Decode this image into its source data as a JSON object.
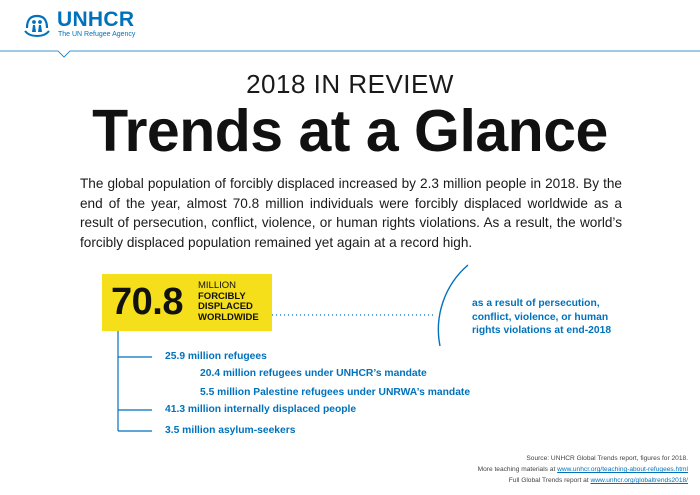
{
  "header": {
    "logo_name": "UNHCR",
    "logo_tagline": "The UN Refugee Agency",
    "logo_icon": "unhcr-emblem-icon"
  },
  "kicker": "2018 IN REVIEW",
  "title": "Trends at a Glance",
  "intro": "The global population of forcibly displaced increased by 2.3 million people in 2018. By the end of the year, almost 70.8 million individuals were forcibly displaced worldwide as a result of persecution, conflict, violence, or human rights violations. As a result, the world’s forcibly displaced population remained yet again at a record high.",
  "headline_stat": {
    "value": "70.8",
    "label_line1": "MILLION",
    "label_line2": "FORCIBLY",
    "label_line3": "DISPLACED",
    "label_line4": "WORLDWIDE"
  },
  "note": "as a result of persecution, conflict, violence, or human rights violations at end-2018",
  "breakdown": [
    {
      "label": "25.9 million refugees"
    },
    {
      "label": "20.4 million refugees under UNHCR’s mandate"
    },
    {
      "label": "5.5 million Palestine refugees under UNRWA’s mandate"
    },
    {
      "label": "41.3 million internally displaced people"
    },
    {
      "label": "3.5 million asylum-seekers"
    }
  ],
  "sources": {
    "line1": "Source: UNHCR Global Trends report, figures for 2018.",
    "line2_prefix": "More teaching materials at ",
    "line2_link": "www.unhcr.org/teaching-about-refugees.html",
    "line3_prefix": "Full Global Trends report at ",
    "line3_link": "www.unhcr.org/globaltrends2018/"
  },
  "colors": {
    "brand_blue": "#0072bc",
    "highlight_yellow": "#f5df1a"
  }
}
